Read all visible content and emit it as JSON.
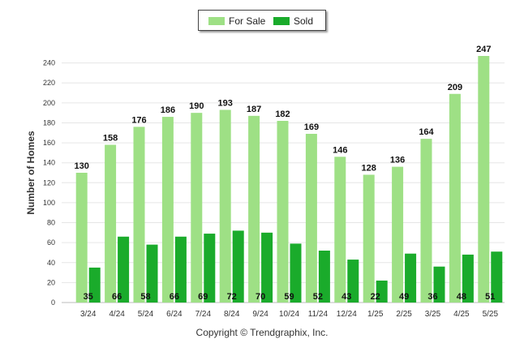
{
  "chart_data": {
    "type": "bar",
    "categories": [
      "3/24",
      "4/24",
      "5/24",
      "6/24",
      "7/24",
      "8/24",
      "9/24",
      "10/24",
      "11/24",
      "12/24",
      "1/25",
      "2/25",
      "3/25",
      "4/25",
      "5/25"
    ],
    "series": [
      {
        "name": "For Sale",
        "color": "#9ee085",
        "values": [
          130,
          158,
          176,
          186,
          190,
          193,
          187,
          182,
          169,
          146,
          128,
          136,
          164,
          209,
          247
        ]
      },
      {
        "name": "Sold",
        "color": "#1aab2b",
        "values": [
          35,
          66,
          58,
          66,
          69,
          72,
          70,
          59,
          52,
          43,
          22,
          49,
          36,
          48,
          51
        ]
      }
    ],
    "ylabel": "Number of Homes",
    "xlabel": "",
    "ylim": [
      0,
      260
    ],
    "yticks": [
      0,
      20,
      40,
      60,
      80,
      100,
      120,
      140,
      160,
      180,
      200,
      220,
      240
    ],
    "grid": true,
    "legend_position": "top-center"
  },
  "footer": {
    "copyright": "Copyright © Trendgraphix, Inc."
  }
}
